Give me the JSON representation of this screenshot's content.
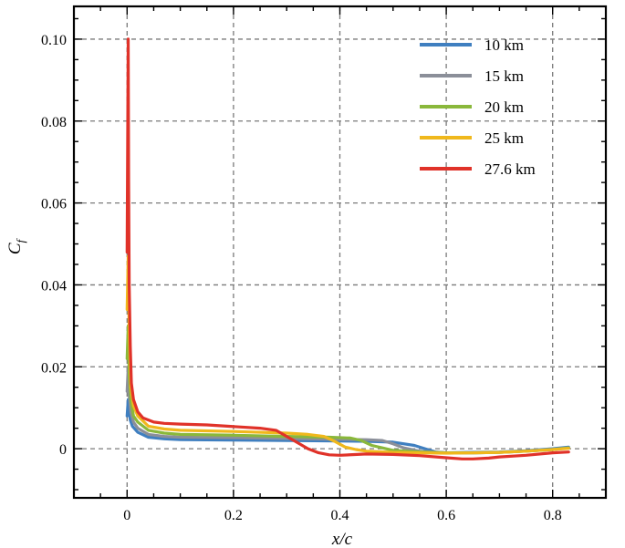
{
  "chart_data": {
    "type": "line",
    "xlabel": "x/c",
    "ylabel": "C",
    "ylabel_sub": "f",
    "xlim": [
      -0.1,
      0.9
    ],
    "ylim": [
      -0.012,
      0.108
    ],
    "xticks": [
      0,
      0.2,
      0.4,
      0.6,
      0.8
    ],
    "xtick_labels": [
      "0",
      "0.2",
      "0.4",
      "0.6",
      "0.8"
    ],
    "yticks": [
      0,
      0.02,
      0.04,
      0.06,
      0.08,
      0.1
    ],
    "ytick_labels": [
      "0",
      "0.02",
      "0.04",
      "0.06",
      "0.08",
      "0.10"
    ],
    "grid": true,
    "legend_position": "top-right",
    "series": [
      {
        "name": "10 km",
        "color": "#3f7fc0",
        "x": [
          0,
          0.002,
          0.004,
          0.006,
          0.01,
          0.02,
          0.04,
          0.07,
          0.1,
          0.2,
          0.3,
          0.4,
          0.45,
          0.5,
          0.54,
          0.56,
          0.58,
          0.6,
          0.65,
          0.7,
          0.75,
          0.8,
          0.83
        ],
        "y": [
          0.008,
          0.012,
          0.009,
          0.007,
          0.0055,
          0.004,
          0.0028,
          0.0024,
          0.0022,
          0.0021,
          0.002,
          0.0019,
          0.0018,
          0.0016,
          0.0008,
          0.0,
          -0.0008,
          -0.001,
          -0.0009,
          -0.0008,
          -0.0005,
          0.0,
          0.0004
        ]
      },
      {
        "name": "15 km",
        "color": "#8b8f99",
        "x": [
          0,
          0.002,
          0.004,
          0.007,
          0.012,
          0.02,
          0.04,
          0.07,
          0.1,
          0.2,
          0.3,
          0.4,
          0.45,
          0.48,
          0.5,
          0.52,
          0.55,
          0.6,
          0.65,
          0.7,
          0.75,
          0.8,
          0.83
        ],
        "y": [
          0.014,
          0.02,
          0.013,
          0.009,
          0.0065,
          0.005,
          0.0035,
          0.003,
          0.0028,
          0.0027,
          0.0025,
          0.0023,
          0.0022,
          0.002,
          0.0012,
          0.0002,
          -0.0006,
          -0.001,
          -0.001,
          -0.0009,
          -0.0006,
          -0.0002,
          0.0002
        ]
      },
      {
        "name": "20 km",
        "color": "#8ab83b",
        "x": [
          0,
          0.002,
          0.004,
          0.007,
          0.012,
          0.02,
          0.04,
          0.07,
          0.1,
          0.2,
          0.3,
          0.38,
          0.42,
          0.44,
          0.46,
          0.48,
          0.5,
          0.55,
          0.6,
          0.65,
          0.7,
          0.75,
          0.8,
          0.83
        ],
        "y": [
          0.022,
          0.03,
          0.018,
          0.012,
          0.008,
          0.0065,
          0.0045,
          0.0038,
          0.0035,
          0.0033,
          0.003,
          0.0028,
          0.0026,
          0.002,
          0.0008,
          0.0002,
          -0.0004,
          -0.0008,
          -0.001,
          -0.001,
          -0.0009,
          -0.0006,
          -0.0002,
          0.0002
        ]
      },
      {
        "name": "25 km",
        "color": "#f0b81c",
        "x": [
          0,
          0.002,
          0.004,
          0.007,
          0.012,
          0.02,
          0.04,
          0.07,
          0.1,
          0.2,
          0.3,
          0.34,
          0.37,
          0.39,
          0.41,
          0.43,
          0.45,
          0.5,
          0.55,
          0.6,
          0.65,
          0.7,
          0.75,
          0.8,
          0.83
        ],
        "y": [
          0.034,
          0.047,
          0.028,
          0.015,
          0.0105,
          0.008,
          0.0055,
          0.0048,
          0.0045,
          0.0042,
          0.0038,
          0.0035,
          0.003,
          0.0018,
          0.0004,
          -0.0002,
          -0.0006,
          -0.0009,
          -0.001,
          -0.0011,
          -0.001,
          -0.0009,
          -0.0006,
          -0.0002,
          0.0001
        ]
      },
      {
        "name": "27.6 km",
        "color": "#e03229",
        "x": [
          0,
          0.002,
          0.003,
          0.004,
          0.006,
          0.008,
          0.012,
          0.02,
          0.03,
          0.05,
          0.07,
          0.1,
          0.15,
          0.2,
          0.25,
          0.28,
          0.3,
          0.32,
          0.34,
          0.36,
          0.38,
          0.4,
          0.45,
          0.5,
          0.55,
          0.6,
          0.63,
          0.65,
          0.68,
          0.7,
          0.75,
          0.8,
          0.83
        ],
        "y": [
          0.048,
          0.1,
          0.065,
          0.04,
          0.025,
          0.016,
          0.012,
          0.009,
          0.0075,
          0.0065,
          0.0062,
          0.006,
          0.0058,
          0.0054,
          0.005,
          0.0045,
          0.003,
          0.0015,
          0.0,
          -0.001,
          -0.0015,
          -0.0016,
          -0.0013,
          -0.0014,
          -0.0017,
          -0.0022,
          -0.0025,
          -0.0025,
          -0.0023,
          -0.002,
          -0.0016,
          -0.001,
          -0.0008
        ]
      }
    ]
  }
}
